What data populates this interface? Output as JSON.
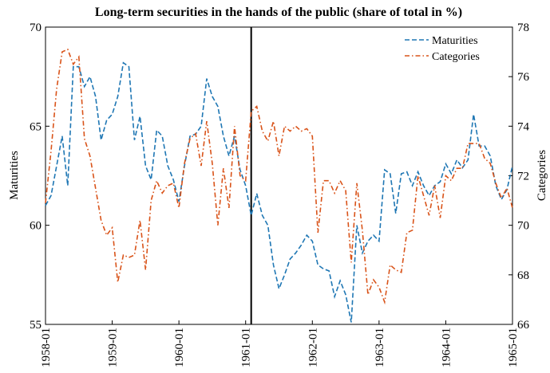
{
  "chart_data": {
    "type": "line",
    "title": "Long-term securities in the hands of the public (share of total in %)",
    "ylabel": "Maturities",
    "y2label": "Categories",
    "x": [
      "1958-01",
      "1958-02",
      "1958-03",
      "1958-04",
      "1958-05",
      "1958-06",
      "1958-07",
      "1958-08",
      "1958-09",
      "1958-10",
      "1958-11",
      "1958-12",
      "1959-01",
      "1959-02",
      "1959-03",
      "1959-04",
      "1959-05",
      "1959-06",
      "1959-07",
      "1959-08",
      "1959-09",
      "1959-10",
      "1959-11",
      "1959-12",
      "1960-01",
      "1960-02",
      "1960-03",
      "1960-04",
      "1960-05",
      "1960-06",
      "1960-07",
      "1960-08",
      "1960-09",
      "1960-10",
      "1960-11",
      "1960-12",
      "1961-01",
      "1961-02",
      "1961-03",
      "1961-04",
      "1961-05",
      "1961-06",
      "1961-07",
      "1961-08",
      "1961-09",
      "1961-10",
      "1961-11",
      "1961-12",
      "1962-01",
      "1962-02",
      "1962-03",
      "1962-04",
      "1962-05",
      "1962-06",
      "1962-07",
      "1962-08",
      "1962-09",
      "1962-10",
      "1962-11",
      "1962-12",
      "1963-01",
      "1963-02",
      "1963-03",
      "1963-04",
      "1963-05",
      "1963-06",
      "1963-07",
      "1963-08",
      "1963-09",
      "1963-10",
      "1963-11",
      "1963-12",
      "1964-01",
      "1964-02",
      "1964-03",
      "1964-04",
      "1964-05",
      "1964-06",
      "1964-07",
      "1964-08",
      "1964-09",
      "1964-10",
      "1964-11",
      "1964-12",
      "1965-01"
    ],
    "xticks": [
      "1958-01",
      "1959-01",
      "1960-01",
      "1961-01",
      "1962-01",
      "1963-01",
      "1964-01",
      "1965-01"
    ],
    "ylim": [
      55,
      70
    ],
    "yticks": [
      55,
      60,
      65,
      70
    ],
    "y2lim": [
      66,
      78
    ],
    "y2ticks": [
      66,
      68,
      70,
      72,
      74,
      76,
      78
    ],
    "vline": "1961-02",
    "legend": "upper right",
    "series": [
      {
        "name": "Maturities",
        "color": "#1f77b4",
        "dash": "dashed",
        "values": [
          61,
          61.5,
          63,
          64.5,
          62,
          68,
          68,
          67,
          67.5,
          66.5,
          64.3,
          65.3,
          65.6,
          66.5,
          68.2,
          68,
          64.3,
          65.5,
          63,
          62.3,
          64.8,
          64.5,
          63,
          62.3,
          61.2,
          63,
          64.5,
          64.6,
          65,
          67.4,
          66.5,
          66,
          64.5,
          63.5,
          64.5,
          62.8,
          62,
          60.5,
          61.6,
          60.5,
          60,
          58,
          56.8,
          57.5,
          58.3,
          58.6,
          59,
          59.5,
          59.2,
          58,
          57.8,
          57.7,
          56.4,
          57.2,
          56.5,
          55.1,
          60,
          58.6,
          59.2,
          59.5,
          59.2,
          62.8,
          62.6,
          60.6,
          62.6,
          62.7,
          62,
          62.7,
          62,
          61.5,
          62,
          62.2,
          63.1,
          62.6,
          63.3,
          62.9,
          63.3,
          65.6,
          64,
          64,
          63.5,
          62,
          61.3,
          61.8,
          63
        ]
      },
      {
        "name": "Categories",
        "color": "#d95319",
        "dash": "dashdot",
        "axis": "y2",
        "values": [
          70.9,
          73,
          75.5,
          77,
          77.1,
          76.5,
          76.8,
          73.5,
          72.8,
          71.5,
          70.2,
          69.6,
          69.9,
          67.7,
          68.8,
          68.7,
          68.8,
          70.2,
          68.2,
          71,
          71.8,
          71.3,
          71.6,
          71.7,
          70.7,
          72.5,
          73.5,
          73.7,
          72.4,
          74.2,
          72.5,
          70,
          72.3,
          70.7,
          74,
          72,
          71.8,
          74.6,
          74.8,
          73.8,
          73.4,
          74.2,
          72.8,
          74,
          73.8,
          74,
          73.8,
          73.9,
          73.6,
          69.7,
          71.8,
          71.8,
          71.3,
          71.8,
          71.4,
          68.5,
          71.7,
          69.8,
          67.2,
          67.8,
          67.5,
          66.9,
          68.4,
          68.2,
          68.1,
          69.7,
          69.8,
          72,
          71.2,
          70.4,
          71.6,
          70.3,
          72,
          71.8,
          72.3,
          72.3,
          73.3,
          73.3,
          73.3,
          72.7,
          72.5,
          71.7,
          71.1,
          71.5,
          70.7
        ]
      }
    ]
  }
}
